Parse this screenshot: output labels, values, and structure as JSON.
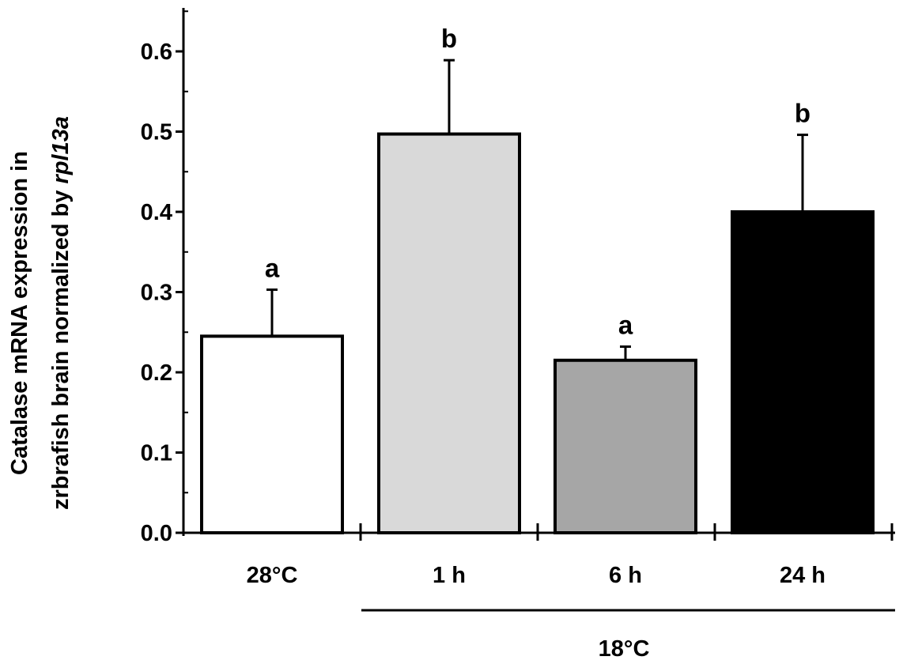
{
  "chart_data": {
    "type": "bar",
    "categories": [
      "28°C",
      "1 h",
      "6 h",
      "24 h"
    ],
    "values": [
      0.245,
      0.497,
      0.215,
      0.4
    ],
    "errors": [
      0.058,
      0.092,
      0.017,
      0.096
    ],
    "significance": [
      "a",
      "b",
      "a",
      "b"
    ],
    "bar_colors": [
      "#ffffff",
      "#d9d9d9",
      "#a6a6a6",
      "#000000"
    ],
    "ylabel_line1": "Catalase mRNA expression in",
    "ylabel_line2_prefix": "zrbrafish brain normalized by ",
    "ylabel_line2_italic": "rpl13a",
    "yticks": [
      "0.0",
      "0.1",
      "0.2",
      "0.3",
      "0.4",
      "0.5",
      "0.6"
    ],
    "ylim": [
      0,
      0.65
    ],
    "group_label": "18°C",
    "grid": false
  }
}
